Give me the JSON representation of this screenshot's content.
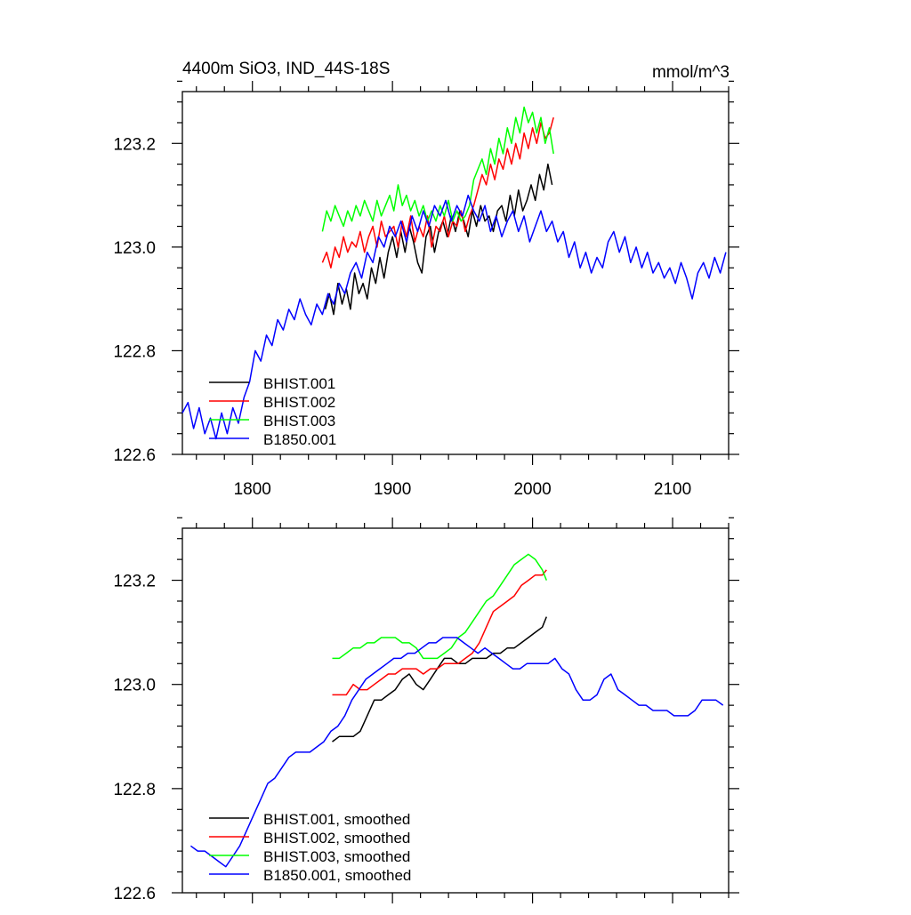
{
  "chart_data": [
    {
      "type": "line",
      "title": "4400m SiO3, IND_44S-18S",
      "units": "mmol/m^3",
      "xlim": [
        1750,
        2140
      ],
      "ylim": [
        122.6,
        123.3
      ],
      "xticks": [
        1800,
        1900,
        2000,
        2100
      ],
      "xtick_labels": [
        "1800",
        "1900",
        "2000",
        "2100"
      ],
      "yticks": [
        122.6,
        122.8,
        123.0,
        123.2
      ],
      "ytick_labels": [
        "122.6",
        "122.8",
        "123.0",
        "123.2"
      ],
      "legend_position": "bottom-left",
      "series": [
        {
          "name": "BHIST.001",
          "color": "#000000",
          "x": [
            1852,
            1855,
            1858,
            1861,
            1864,
            1867,
            1870,
            1873,
            1876,
            1879,
            1882,
            1885,
            1888,
            1891,
            1894,
            1897,
            1900,
            1903,
            1906,
            1909,
            1912,
            1915,
            1918,
            1921,
            1924,
            1927,
            1930,
            1933,
            1936,
            1939,
            1942,
            1945,
            1948,
            1951,
            1954,
            1957,
            1960,
            1963,
            1966,
            1969,
            1972,
            1975,
            1978,
            1981,
            1984,
            1987,
            1990,
            1993,
            1996,
            1999,
            2002,
            2005,
            2008,
            2011,
            2014
          ],
          "y": [
            122.88,
            122.91,
            122.87,
            122.93,
            122.89,
            122.92,
            122.88,
            122.95,
            122.91,
            122.93,
            122.9,
            122.96,
            122.93,
            122.98,
            122.94,
            122.99,
            123.02,
            122.98,
            123.03,
            122.99,
            123.04,
            123.01,
            122.97,
            122.95,
            123.02,
            123.04,
            122.99,
            123.03,
            123.05,
            123.02,
            123.06,
            123.03,
            123.07,
            123.05,
            123.02,
            123.07,
            123.04,
            123.08,
            123.05,
            123.06,
            123.03,
            123.07,
            123.08,
            123.05,
            123.1,
            123.06,
            123.11,
            123.07,
            123.09,
            123.12,
            123.09,
            123.14,
            123.11,
            123.16,
            123.12
          ]
        },
        {
          "name": "BHIST.002",
          "color": "#ff0000",
          "x": [
            1850,
            1853,
            1856,
            1859,
            1862,
            1865,
            1868,
            1871,
            1874,
            1877,
            1880,
            1883,
            1886,
            1889,
            1892,
            1895,
            1898,
            1901,
            1904,
            1907,
            1910,
            1913,
            1916,
            1919,
            1922,
            1925,
            1928,
            1931,
            1934,
            1937,
            1940,
            1943,
            1946,
            1949,
            1952,
            1955,
            1958,
            1961,
            1964,
            1967,
            1970,
            1973,
            1976,
            1979,
            1982,
            1985,
            1988,
            1991,
            1994,
            1997,
            2000,
            2003,
            2006,
            2009,
            2012,
            2015
          ],
          "y": [
            122.97,
            122.99,
            122.96,
            123.0,
            122.98,
            123.02,
            122.99,
            123.01,
            123.0,
            123.03,
            122.99,
            123.02,
            123.04,
            123.0,
            123.05,
            123.02,
            123.03,
            123.04,
            123.0,
            123.05,
            123.02,
            123.06,
            123.01,
            123.04,
            123.02,
            123.06,
            123.0,
            123.04,
            123.03,
            123.06,
            123.02,
            123.05,
            123.04,
            123.07,
            123.03,
            123.06,
            123.08,
            123.11,
            123.14,
            123.12,
            123.16,
            123.13,
            123.17,
            123.15,
            123.19,
            123.16,
            123.2,
            123.17,
            123.22,
            123.19,
            123.23,
            123.2,
            123.24,
            123.21,
            123.22,
            123.25
          ]
        },
        {
          "name": "BHIST.003",
          "color": "#00ff00",
          "x": [
            1850,
            1853,
            1856,
            1859,
            1862,
            1865,
            1868,
            1871,
            1874,
            1877,
            1880,
            1883,
            1886,
            1889,
            1892,
            1895,
            1898,
            1901,
            1904,
            1907,
            1910,
            1913,
            1916,
            1919,
            1922,
            1925,
            1928,
            1931,
            1934,
            1937,
            1940,
            1943,
            1946,
            1949,
            1952,
            1955,
            1958,
            1961,
            1964,
            1967,
            1970,
            1973,
            1976,
            1979,
            1982,
            1985,
            1988,
            1991,
            1994,
            1997,
            2000,
            2003,
            2006,
            2009,
            2012,
            2015
          ],
          "y": [
            123.03,
            123.07,
            123.05,
            123.08,
            123.06,
            123.04,
            123.07,
            123.05,
            123.08,
            123.06,
            123.09,
            123.07,
            123.05,
            123.09,
            123.06,
            123.08,
            123.1,
            123.07,
            123.12,
            123.08,
            123.1,
            123.07,
            123.09,
            123.06,
            123.08,
            123.05,
            123.07,
            123.05,
            123.08,
            123.06,
            123.09,
            123.05,
            123.07,
            123.05,
            123.06,
            123.08,
            123.13,
            123.15,
            123.17,
            123.14,
            123.19,
            123.16,
            123.21,
            123.18,
            123.23,
            123.2,
            123.25,
            123.22,
            123.27,
            123.24,
            123.26,
            123.22,
            123.25,
            123.2,
            123.23,
            123.18
          ]
        },
        {
          "name": "B1850.001",
          "color": "#0000ff",
          "x": [
            1750,
            1754,
            1758,
            1762,
            1766,
            1770,
            1774,
            1778,
            1782,
            1786,
            1790,
            1794,
            1798,
            1802,
            1806,
            1810,
            1814,
            1818,
            1822,
            1826,
            1830,
            1834,
            1838,
            1842,
            1846,
            1850,
            1854,
            1858,
            1862,
            1866,
            1870,
            1874,
            1878,
            1882,
            1886,
            1890,
            1894,
            1898,
            1902,
            1906,
            1910,
            1914,
            1918,
            1922,
            1926,
            1930,
            1934,
            1938,
            1942,
            1946,
            1950,
            1954,
            1958,
            1962,
            1966,
            1970,
            1974,
            1978,
            1982,
            1986,
            1990,
            1994,
            1998,
            2002,
            2006,
            2010,
            2014,
            2018,
            2022,
            2026,
            2030,
            2034,
            2038,
            2042,
            2046,
            2050,
            2054,
            2058,
            2062,
            2066,
            2070,
            2074,
            2078,
            2082,
            2086,
            2090,
            2094,
            2098,
            2102,
            2106,
            2110,
            2114,
            2118,
            2122,
            2126,
            2130,
            2134,
            2138
          ],
          "y": [
            122.68,
            122.7,
            122.65,
            122.69,
            122.64,
            122.67,
            122.63,
            122.68,
            122.64,
            122.69,
            122.66,
            122.71,
            122.74,
            122.8,
            122.78,
            122.83,
            122.81,
            122.86,
            122.84,
            122.88,
            122.86,
            122.9,
            122.87,
            122.85,
            122.89,
            122.87,
            122.91,
            122.89,
            122.93,
            122.91,
            122.95,
            122.97,
            122.94,
            122.99,
            122.97,
            123.02,
            123.0,
            123.04,
            123.02,
            123.05,
            123.01,
            123.06,
            123.03,
            123.07,
            123.04,
            123.08,
            123.06,
            123.09,
            123.05,
            123.08,
            123.06,
            123.1,
            123.07,
            123.05,
            123.08,
            123.03,
            123.06,
            123.02,
            123.05,
            123.07,
            123.03,
            123.06,
            123.01,
            123.04,
            123.07,
            123.03,
            123.05,
            123.01,
            123.03,
            122.98,
            123.01,
            122.96,
            122.99,
            122.95,
            122.98,
            122.96,
            123.01,
            123.03,
            122.99,
            123.02,
            122.97,
            123.0,
            122.96,
            122.99,
            122.95,
            122.97,
            122.94,
            122.96,
            122.93,
            122.97,
            122.94,
            122.9,
            122.95,
            122.97,
            122.94,
            122.98,
            122.95,
            122.99
          ]
        }
      ]
    },
    {
      "type": "line",
      "xlim": [
        1750,
        2140
      ],
      "ylim": [
        122.6,
        123.3
      ],
      "xticks": [
        1800,
        1900,
        2000,
        2100
      ],
      "yticks": [
        122.6,
        122.8,
        123.0,
        123.2
      ],
      "ytick_labels": [
        "122.6",
        "122.8",
        "123.0",
        "123.2"
      ],
      "legend_position": "bottom-left",
      "series": [
        {
          "name": "BHIST.001, smoothed",
          "color": "#000000",
          "x": [
            1857,
            1862,
            1867,
            1872,
            1877,
            1882,
            1887,
            1892,
            1897,
            1902,
            1907,
            1912,
            1917,
            1922,
            1927,
            1932,
            1937,
            1942,
            1947,
            1952,
            1957,
            1962,
            1967,
            1972,
            1977,
            1982,
            1987,
            1992,
            1997,
            2002,
            2007,
            2010
          ],
          "y": [
            122.89,
            122.9,
            122.9,
            122.9,
            122.91,
            122.94,
            122.97,
            122.97,
            122.98,
            122.99,
            123.01,
            123.02,
            123.0,
            122.99,
            123.01,
            123.03,
            123.05,
            123.05,
            123.04,
            123.04,
            123.05,
            123.05,
            123.05,
            123.06,
            123.06,
            123.07,
            123.07,
            123.08,
            123.09,
            123.1,
            123.11,
            123.13
          ]
        },
        {
          "name": "BHIST.002, smoothed",
          "color": "#ff0000",
          "x": [
            1857,
            1862,
            1867,
            1872,
            1877,
            1882,
            1887,
            1892,
            1897,
            1902,
            1907,
            1912,
            1917,
            1922,
            1927,
            1932,
            1937,
            1942,
            1947,
            1952,
            1957,
            1962,
            1967,
            1972,
            1977,
            1982,
            1987,
            1992,
            1997,
            2002,
            2007,
            2010
          ],
          "y": [
            122.98,
            122.98,
            122.98,
            123.0,
            122.99,
            122.99,
            123.0,
            123.01,
            123.02,
            123.02,
            123.03,
            123.03,
            123.03,
            123.02,
            123.03,
            123.03,
            123.04,
            123.04,
            123.04,
            123.05,
            123.06,
            123.08,
            123.11,
            123.14,
            123.15,
            123.16,
            123.17,
            123.19,
            123.2,
            123.21,
            123.21,
            123.22
          ]
        },
        {
          "name": "BHIST.003, smoothed",
          "color": "#00ff00",
          "x": [
            1857,
            1862,
            1867,
            1872,
            1877,
            1882,
            1887,
            1892,
            1897,
            1902,
            1907,
            1912,
            1917,
            1922,
            1927,
            1932,
            1937,
            1942,
            1947,
            1952,
            1957,
            1962,
            1967,
            1972,
            1977,
            1982,
            1987,
            1992,
            1997,
            2002,
            2007,
            2010
          ],
          "y": [
            123.05,
            123.05,
            123.06,
            123.07,
            123.07,
            123.08,
            123.08,
            123.09,
            123.09,
            123.09,
            123.08,
            123.08,
            123.07,
            123.05,
            123.05,
            123.05,
            123.06,
            123.07,
            123.09,
            123.1,
            123.12,
            123.14,
            123.16,
            123.17,
            123.19,
            123.21,
            123.23,
            123.24,
            123.25,
            123.24,
            123.22,
            123.2
          ]
        },
        {
          "name": "B1850.001, smoothed",
          "color": "#0000ff",
          "x": [
            1756,
            1761,
            1766,
            1771,
            1776,
            1781,
            1786,
            1791,
            1796,
            1801,
            1806,
            1811,
            1816,
            1821,
            1826,
            1831,
            1836,
            1841,
            1846,
            1851,
            1856,
            1861,
            1866,
            1871,
            1876,
            1881,
            1886,
            1891,
            1896,
            1901,
            1906,
            1911,
            1916,
            1921,
            1926,
            1931,
            1936,
            1941,
            1946,
            1951,
            1956,
            1961,
            1966,
            1971,
            1976,
            1981,
            1986,
            1991,
            1996,
            2001,
            2006,
            2011,
            2016,
            2021,
            2026,
            2031,
            2036,
            2041,
            2046,
            2051,
            2056,
            2061,
            2066,
            2071,
            2076,
            2081,
            2086,
            2091,
            2096,
            2101,
            2106,
            2111,
            2116,
            2121,
            2126,
            2131,
            2136
          ],
          "y": [
            122.69,
            122.68,
            122.68,
            122.67,
            122.66,
            122.65,
            122.67,
            122.69,
            122.72,
            122.75,
            122.78,
            122.81,
            122.82,
            122.84,
            122.86,
            122.87,
            122.87,
            122.87,
            122.88,
            122.89,
            122.91,
            122.92,
            122.94,
            122.97,
            122.99,
            123.01,
            123.02,
            123.03,
            123.04,
            123.05,
            123.05,
            123.06,
            123.06,
            123.07,
            123.08,
            123.08,
            123.09,
            123.09,
            123.09,
            123.08,
            123.07,
            123.06,
            123.07,
            123.06,
            123.05,
            123.04,
            123.03,
            123.03,
            123.04,
            123.04,
            123.04,
            123.04,
            123.05,
            123.03,
            123.02,
            122.99,
            122.97,
            122.97,
            122.98,
            123.01,
            123.02,
            122.99,
            122.98,
            122.97,
            122.96,
            122.96,
            122.95,
            122.95,
            122.95,
            122.94,
            122.94,
            122.94,
            122.95,
            122.97,
            122.97,
            122.97,
            122.96
          ]
        }
      ]
    }
  ]
}
